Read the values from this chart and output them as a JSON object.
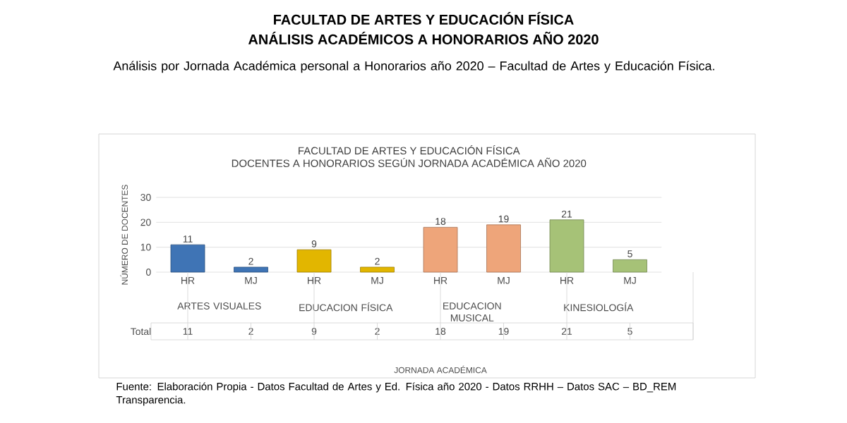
{
  "chart_data": {
    "type": "bar",
    "title": "FACULTAD DE ARTES Y EDUCACIÓN FÍSICA",
    "subtitle": "DOCENTES A HONORARIOS SEGÚN JORNADA ACADÉMICA AÑO 2020",
    "ylabel": "NÚMERO DE DOCENTES",
    "categories": [
      "HR",
      "MJ",
      "HR",
      "MJ",
      "HR",
      "MJ",
      "HR",
      "MJ"
    ],
    "values": [
      11,
      2,
      9,
      2,
      18,
      19,
      21,
      5
    ],
    "colors": [
      "#3f74b5",
      "#3f74b5",
      "#e2b600",
      "#e2b600",
      "#eea57a",
      "#eea57a",
      "#a6c277",
      "#a6c277"
    ],
    "value_labels": [
      "11",
      "2",
      "9",
      "2",
      "18",
      "19",
      "21",
      "5"
    ],
    "ylim": [
      0,
      30
    ],
    "yticks": [
      0,
      10,
      20,
      30
    ],
    "grid": "y",
    "annotations": [
      "FACULTAD DE ARTES Y EDUCACIÓN FÍSICA",
      "ANÁLISIS ACADÉMICOS A HONORARIOS AÑO 2020",
      "Análisis por Jornada Académica personal a Honorarios año 2020 – Facultad de Artes y Educación Física.",
      "Fuente: Elaboración Propia - Datos Facultad de Artes y Ed. Física año 2020 - Datos RRHH – Datos SAC – BD_REM Transparencia.",
      "ARTES VISUALES",
      "EDUCACION FÍSICA",
      "EDUCACION MUSICAL",
      "KINESIOLOGÍA",
      "Total",
      "JORNADA ACADÉMICA"
    ]
  }
}
